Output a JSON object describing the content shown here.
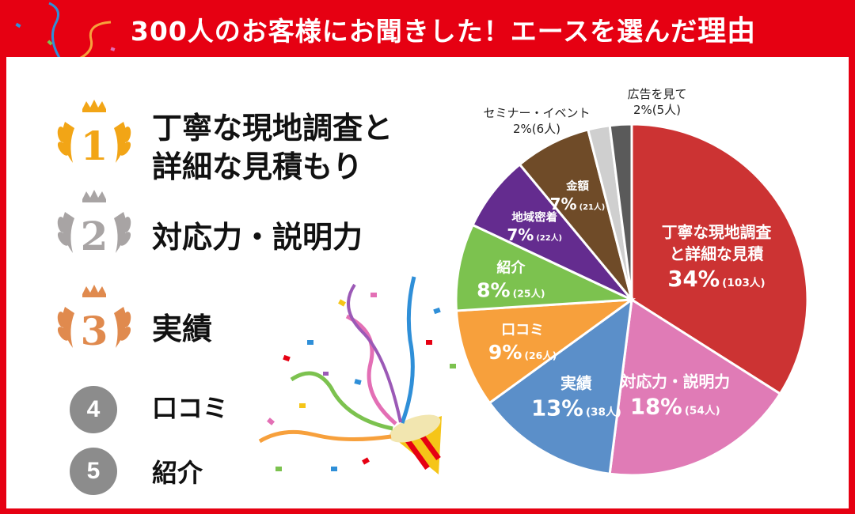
{
  "header": {
    "title_main": "300人のお客様にお聞きした！エースを選んだ",
    "title_emph": "理由"
  },
  "ranking": [
    {
      "rank": "1",
      "lines": [
        "丁寧な現地調査と",
        "詳細な見積もり"
      ]
    },
    {
      "rank": "2",
      "lines": [
        "対応力・説明力"
      ]
    },
    {
      "rank": "3",
      "lines": [
        "実績"
      ]
    },
    {
      "rank": "4",
      "lines": [
        "口コミ"
      ]
    },
    {
      "rank": "5",
      "lines": [
        "紹介"
      ]
    }
  ],
  "colors": {
    "red": "#cc3333",
    "pink": "#e07bb6",
    "blue": "#5b8fc9",
    "orange": "#f7a03c",
    "green": "#7cc24f",
    "purple": "#642c8f",
    "brown": "#6f4b28",
    "lightgray": "#cfcfcf",
    "darkgray": "#5a5a5a",
    "gold": "#f2a516",
    "silver": "#a8a4a4",
    "bronze": "#e08a4e"
  },
  "chart_data": {
    "type": "pie",
    "slices": [
      {
        "label_lines": [
          "丁寧な現地調査",
          "と詳細な見積"
        ],
        "percent": 34,
        "pct_text": "34%",
        "count_text": "(103人)",
        "color": "#cc3333"
      },
      {
        "label_lines": [
          "対応力・説明力"
        ],
        "percent": 18,
        "pct_text": "18%",
        "count_text": "(54人)",
        "color": "#e07bb6"
      },
      {
        "label_lines": [
          "実績"
        ],
        "percent": 13,
        "pct_text": "13%",
        "count_text": "(38人)",
        "color": "#5b8fc9"
      },
      {
        "label_lines": [
          "口コミ"
        ],
        "percent": 9,
        "pct_text": "9%",
        "count_text": "(26人)",
        "color": "#f7a03c"
      },
      {
        "label_lines": [
          "紹介"
        ],
        "percent": 8,
        "pct_text": "8%",
        "count_text": "(25人)",
        "color": "#7cc24f"
      },
      {
        "label_lines": [
          "地域密着"
        ],
        "percent": 7,
        "pct_text": "7%",
        "count_text": "(22人)",
        "color": "#642c8f"
      },
      {
        "label_lines": [
          "金額"
        ],
        "percent": 7,
        "pct_text": "7%",
        "count_text": "(21人)",
        "color": "#6f4b28"
      },
      {
        "label_lines": [
          "セミナー・イベント"
        ],
        "percent": 2,
        "pct_text": "2%(6人)",
        "count_text": "",
        "color": "#cfcfcf",
        "outside": true
      },
      {
        "label_lines": [
          "広告を見て"
        ],
        "percent": 2,
        "pct_text": "2%(5人)",
        "count_text": "",
        "color": "#5a5a5a",
        "outside": true
      }
    ]
  }
}
